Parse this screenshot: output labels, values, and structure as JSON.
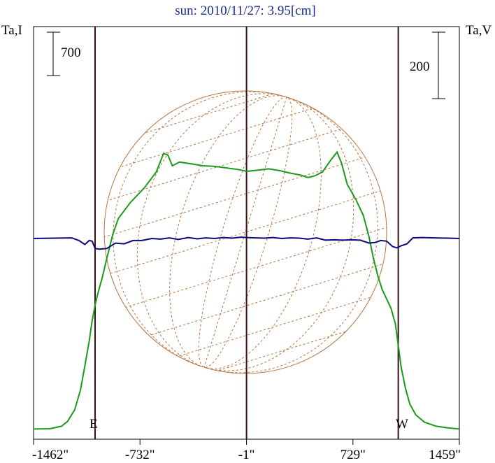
{
  "chart_data": {
    "type": "line",
    "title": "sun: 2010/11/27: 3.95[cm]",
    "left_axis_label": "Ta,I",
    "right_axis_label": "Ta,V",
    "x_unit": "arcsec",
    "xlim": [
      -1462,
      1459
    ],
    "x_tick_labels": [
      "-1462\"",
      "-732\"",
      "-1\"",
      "729\"",
      "1459\""
    ],
    "x_tick_values": [
      -1462,
      -732,
      -1,
      729,
      1459
    ],
    "limb_markers": [
      {
        "label": "E",
        "x": -1040
      },
      {
        "label": "center",
        "x": -1
      },
      {
        "label": "W",
        "x": 1040
      }
    ],
    "left_scale_bar": {
      "label": "700",
      "value": 700
    },
    "right_scale_bar": {
      "label": "200",
      "value": 200
    },
    "grid": false,
    "series": [
      {
        "name": "I",
        "color": "#1a9a1a",
        "points": [
          [
            -1462,
            -50
          ],
          [
            -1350,
            -45
          ],
          [
            -1270,
            -5
          ],
          [
            -1230,
            70
          ],
          [
            -1180,
            260
          ],
          [
            -1140,
            580
          ],
          [
            -1110,
            970
          ],
          [
            -1080,
            1370
          ],
          [
            -1060,
            1700
          ],
          [
            -1040,
            1950
          ],
          [
            -1020,
            2150
          ],
          [
            -990,
            2400
          ],
          [
            -960,
            2700
          ],
          [
            -920,
            3080
          ],
          [
            -880,
            3350
          ],
          [
            -800,
            3600
          ],
          [
            -700,
            3850
          ],
          [
            -620,
            4100
          ],
          [
            -570,
            4400
          ],
          [
            -540,
            4370
          ],
          [
            -510,
            4200
          ],
          [
            -460,
            4260
          ],
          [
            -380,
            4230
          ],
          [
            -300,
            4200
          ],
          [
            -220,
            4190
          ],
          [
            -150,
            4170
          ],
          [
            -60,
            4140
          ],
          [
            0,
            4110
          ],
          [
            80,
            4130
          ],
          [
            150,
            4150
          ],
          [
            230,
            4120
          ],
          [
            300,
            4080
          ],
          [
            370,
            4050
          ],
          [
            420,
            4010
          ],
          [
            470,
            4040
          ],
          [
            520,
            4100
          ],
          [
            580,
            4300
          ],
          [
            620,
            4420
          ],
          [
            650,
            4250
          ],
          [
            690,
            3900
          ],
          [
            750,
            3650
          ],
          [
            800,
            3400
          ],
          [
            840,
            3050
          ],
          [
            870,
            2700
          ],
          [
            900,
            2420
          ],
          [
            930,
            2200
          ],
          [
            960,
            2050
          ],
          [
            990,
            1900
          ],
          [
            1020,
            1650
          ],
          [
            1040,
            1300
          ],
          [
            1060,
            950
          ],
          [
            1090,
            600
          ],
          [
            1120,
            350
          ],
          [
            1160,
            180
          ],
          [
            1220,
            60
          ],
          [
            1300,
            -5
          ],
          [
            1380,
            -30
          ],
          [
            1459,
            -50
          ]
        ]
      },
      {
        "name": "V",
        "color": "#0a0a7a",
        "points": [
          [
            -1462,
            0
          ],
          [
            -1200,
            2
          ],
          [
            -1150,
            -6
          ],
          [
            -1110,
            -18
          ],
          [
            -1080,
            -6
          ],
          [
            -1060,
            -8
          ],
          [
            -1040,
            -30
          ],
          [
            -1010,
            -32
          ],
          [
            -960,
            -30
          ],
          [
            -900,
            -14
          ],
          [
            -840,
            -16
          ],
          [
            -780,
            -6
          ],
          [
            -720,
            -6
          ],
          [
            -650,
            0
          ],
          [
            -590,
            -2
          ],
          [
            -530,
            2
          ],
          [
            -470,
            -3
          ],
          [
            -400,
            3
          ],
          [
            -340,
            -1
          ],
          [
            -280,
            2
          ],
          [
            -220,
            0
          ],
          [
            -160,
            3
          ],
          [
            -100,
            1
          ],
          [
            -40,
            4
          ],
          [
            0,
            3
          ],
          [
            60,
            2
          ],
          [
            120,
            1
          ],
          [
            180,
            3
          ],
          [
            240,
            0
          ],
          [
            300,
            2
          ],
          [
            360,
            1
          ],
          [
            420,
            -2
          ],
          [
            480,
            2
          ],
          [
            540,
            -5
          ],
          [
            600,
            -4
          ],
          [
            660,
            -5
          ],
          [
            720,
            -4
          ],
          [
            780,
            -5
          ],
          [
            840,
            -14
          ],
          [
            880,
            -12
          ],
          [
            920,
            -6
          ],
          [
            960,
            -8
          ],
          [
            1000,
            -24
          ],
          [
            1030,
            -28
          ],
          [
            1060,
            -22
          ],
          [
            1100,
            -16
          ],
          [
            1140,
            2
          ],
          [
            1200,
            3
          ],
          [
            1459,
            0
          ]
        ]
      }
    ]
  }
}
